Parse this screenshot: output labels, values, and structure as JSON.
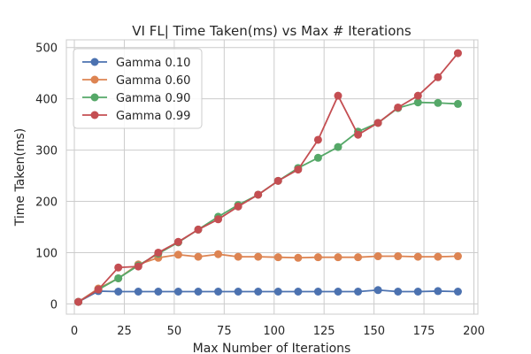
{
  "chart_data": {
    "type": "line",
    "title": "VI FL| Time Taken(ms) vs Max # Iterations",
    "xlabel": "Max Number of Iterations",
    "ylabel": "Time Taken(ms)",
    "xlim": [
      -4,
      202
    ],
    "ylim": [
      -20,
      515
    ],
    "xticks": [
      0,
      25,
      50,
      75,
      100,
      125,
      150,
      175,
      200
    ],
    "yticks": [
      0,
      100,
      200,
      300,
      400,
      500
    ],
    "grid": true,
    "legend_position": "top-left",
    "x": [
      2,
      12,
      22,
      32,
      42,
      52,
      62,
      72,
      82,
      92,
      102,
      112,
      122,
      132,
      142,
      152,
      162,
      172,
      182,
      192
    ],
    "series": [
      {
        "name": "Gamma 0.10",
        "color": "#4c72b0",
        "values": [
          4,
          25,
          24,
          24,
          24,
          24,
          24,
          24,
          24,
          24,
          24,
          24,
          24,
          24,
          24,
          27,
          24,
          24,
          25,
          24
        ]
      },
      {
        "name": "Gamma 0.60",
        "color": "#dd8452",
        "values": [
          4,
          30,
          50,
          77,
          90,
          96,
          92,
          97,
          92,
          92,
          91,
          90,
          91,
          91,
          91,
          93,
          93,
          92,
          92,
          93
        ]
      },
      {
        "name": "Gamma 0.90",
        "color": "#55a868",
        "values": [
          4,
          28,
          50,
          75,
          98,
          120,
          145,
          170,
          193,
          213,
          240,
          265,
          285,
          306,
          336,
          353,
          382,
          393,
          392,
          390
        ]
      },
      {
        "name": "Gamma 0.99",
        "color": "#c44e52",
        "values": [
          4,
          28,
          71,
          73,
          100,
          121,
          145,
          165,
          190,
          213,
          240,
          262,
          320,
          406,
          330,
          353,
          383,
          406,
          442,
          489
        ]
      }
    ]
  }
}
